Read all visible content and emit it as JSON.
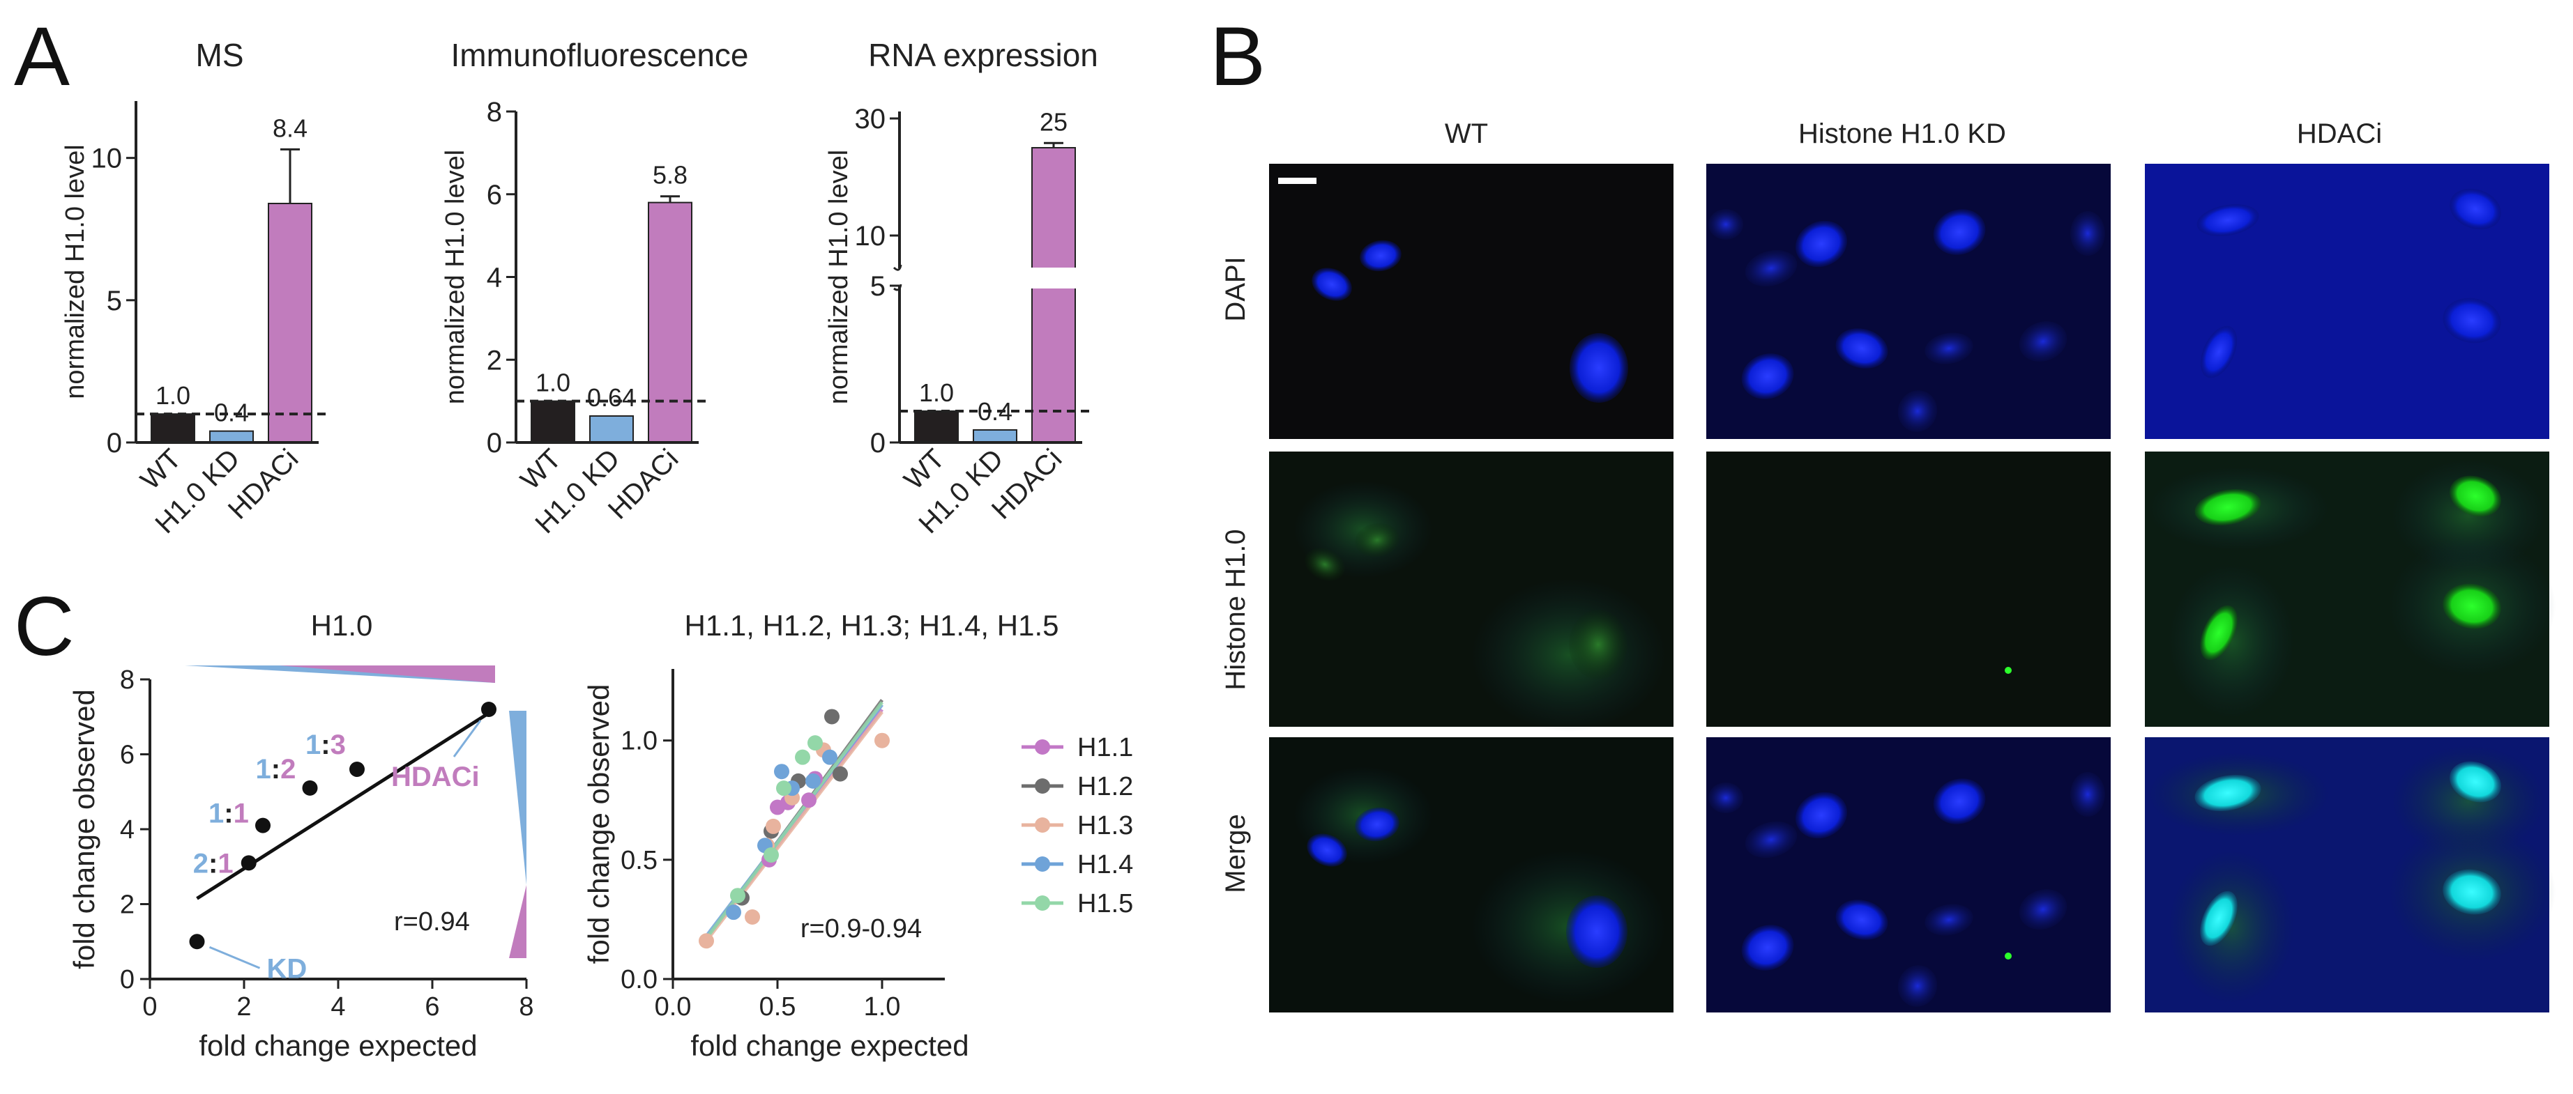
{
  "panel_labels": {
    "a": "A",
    "b": "B",
    "c": "C"
  },
  "colors": {
    "wt": "#231f20",
    "kd": "#7eaedc",
    "hdaci": "#c17cbd",
    "h1_1": "#c277c6",
    "h1_2": "#6d6d6d",
    "h1_3": "#e8b39e",
    "h1_4": "#6fa3d8",
    "h1_5": "#93d7a8",
    "dapi": "#0a22ff",
    "h10": "#1fd820",
    "merge": "#10e0e6"
  },
  "panel_a": {
    "ylabel": "normalized H1.0 level",
    "categories": [
      "WT",
      "H1.0 KD",
      "HDACi"
    ]
  },
  "panel_b": {
    "columns": [
      "WT",
      "Histone H1.0 KD",
      "HDACi"
    ],
    "rows": [
      "DAPI",
      "Histone H1.0",
      "Merge"
    ]
  },
  "panel_c": {
    "left": {
      "title": "H1.0",
      "xlabel": "fold change expected",
      "ylabel": "fold change observed",
      "r_text": "r=0.94",
      "kd_label": "KD",
      "hdaci_label": "HDACi",
      "ratio_labels": [
        {
          "a": "2",
          "b": "1"
        },
        {
          "a": "1",
          "b": "1"
        },
        {
          "a": "1",
          "b": "2"
        },
        {
          "a": "1",
          "b": "3"
        }
      ],
      "ratio_separator": ":"
    },
    "right": {
      "title": "H1.1, H1.2, H1.3; H1.4, H1.5",
      "xlabel": "fold change expected",
      "ylabel": "fold change observed",
      "r_text": "r=0.9-0.94",
      "legend": [
        "H1.1",
        "H1.2",
        "H1.3",
        "H1.4",
        "H1.5"
      ]
    }
  },
  "chart_data": [
    {
      "type": "bar",
      "title": "MS",
      "ylabel": "normalized H1.0 level",
      "categories": [
        "WT",
        "H1.0 KD",
        "HDACi"
      ],
      "values": [
        1.0,
        0.4,
        8.4
      ],
      "value_labels": [
        "1.0",
        "0.4",
        "8.4"
      ],
      "error_upper": [
        null,
        null,
        10.3
      ],
      "ylim": [
        0,
        12
      ],
      "yticks": [
        0,
        5,
        10
      ],
      "reference_line": 1.0
    },
    {
      "type": "bar",
      "title": "Immunofluorescence",
      "ylabel": "normalized H1.0 level",
      "categories": [
        "WT",
        "H1.0 KD",
        "HDACi"
      ],
      "values": [
        1.0,
        0.64,
        5.8
      ],
      "value_labels": [
        "1.0",
        "0.64",
        "5.8"
      ],
      "error_upper": [
        null,
        null,
        5.95
      ],
      "ylim": [
        0,
        8
      ],
      "yticks": [
        0,
        2,
        4,
        6,
        8
      ],
      "reference_line": 1.0
    },
    {
      "type": "bar",
      "title": "RNA expression",
      "ylabel": "normalized H1.0 level",
      "categories": [
        "WT",
        "H1.0 KD",
        "HDACi"
      ],
      "values": [
        1.0,
        0.4,
        25
      ],
      "value_labels": [
        "1.0",
        "0.4",
        "25"
      ],
      "error_upper": [
        null,
        null,
        25.8
      ],
      "axis_break": [
        5,
        8
      ],
      "yticks": [
        0,
        5,
        10,
        30
      ],
      "reference_line": 1.0
    },
    {
      "type": "scatter",
      "title": "H1.0",
      "xlabel": "fold change expected",
      "ylabel": "fold change observed",
      "xlim": [
        0,
        8
      ],
      "ylim": [
        0,
        8
      ],
      "xticks": [
        0,
        2,
        4,
        6,
        8
      ],
      "yticks": [
        0,
        2,
        4,
        6,
        8
      ],
      "points": [
        [
          1.0,
          1.0
        ],
        [
          2.1,
          3.1
        ],
        [
          2.4,
          4.1
        ],
        [
          3.4,
          5.1
        ],
        [
          4.4,
          5.6
        ],
        [
          7.2,
          7.2
        ]
      ],
      "fit": [
        [
          1.0,
          2.15
        ],
        [
          7.2,
          7.1
        ]
      ],
      "r": "r=0.94"
    },
    {
      "type": "scatter",
      "title": "H1.1, H1.2, H1.3; H1.4, H1.5",
      "xlabel": "fold change expected",
      "ylabel": "fold change observed",
      "xlim": [
        0,
        1.3
      ],
      "ylim": [
        0,
        1.3
      ],
      "xticks": [
        0.0,
        0.5,
        1.0
      ],
      "yticks": [
        0.0,
        0.5,
        1.0
      ],
      "series": [
        {
          "name": "H1.1",
          "points": [
            [
              0.46,
              0.5
            ],
            [
              0.5,
              0.72
            ],
            [
              0.55,
              0.74
            ],
            [
              0.65,
              0.75
            ],
            [
              0.68,
              0.84
            ]
          ],
          "fit": [
            [
              0.16,
              0.17
            ],
            [
              1.0,
              1.13
            ]
          ]
        },
        {
          "name": "H1.2",
          "points": [
            [
              0.33,
              0.34
            ],
            [
              0.47,
              0.62
            ],
            [
              0.6,
              0.83
            ],
            [
              0.76,
              1.1
            ],
            [
              0.8,
              0.86
            ]
          ],
          "fit": [
            [
              0.16,
              0.17
            ],
            [
              1.0,
              1.17
            ]
          ]
        },
        {
          "name": "H1.3",
          "points": [
            [
              0.16,
              0.16
            ],
            [
              0.38,
              0.26
            ],
            [
              0.45,
              0.56
            ],
            [
              0.48,
              0.64
            ],
            [
              0.57,
              0.76
            ],
            [
              0.72,
              0.96
            ],
            [
              1.0,
              1.0
            ]
          ],
          "fit": [
            [
              0.16,
              0.16
            ],
            [
              1.0,
              1.12
            ]
          ]
        },
        {
          "name": "H1.4",
          "points": [
            [
              0.29,
              0.28
            ],
            [
              0.44,
              0.56
            ],
            [
              0.52,
              0.87
            ],
            [
              0.57,
              0.8
            ],
            [
              0.67,
              0.83
            ],
            [
              0.75,
              0.93
            ]
          ],
          "fit": [
            [
              0.16,
              0.18
            ],
            [
              1.0,
              1.15
            ]
          ]
        },
        {
          "name": "H1.5",
          "points": [
            [
              0.31,
              0.35
            ],
            [
              0.47,
              0.52
            ],
            [
              0.53,
              0.8
            ],
            [
              0.62,
              0.93
            ],
            [
              0.68,
              0.99
            ]
          ],
          "fit": [
            [
              0.16,
              0.17
            ],
            [
              1.0,
              1.16
            ]
          ]
        }
      ],
      "r": "r=0.9-0.94"
    }
  ]
}
